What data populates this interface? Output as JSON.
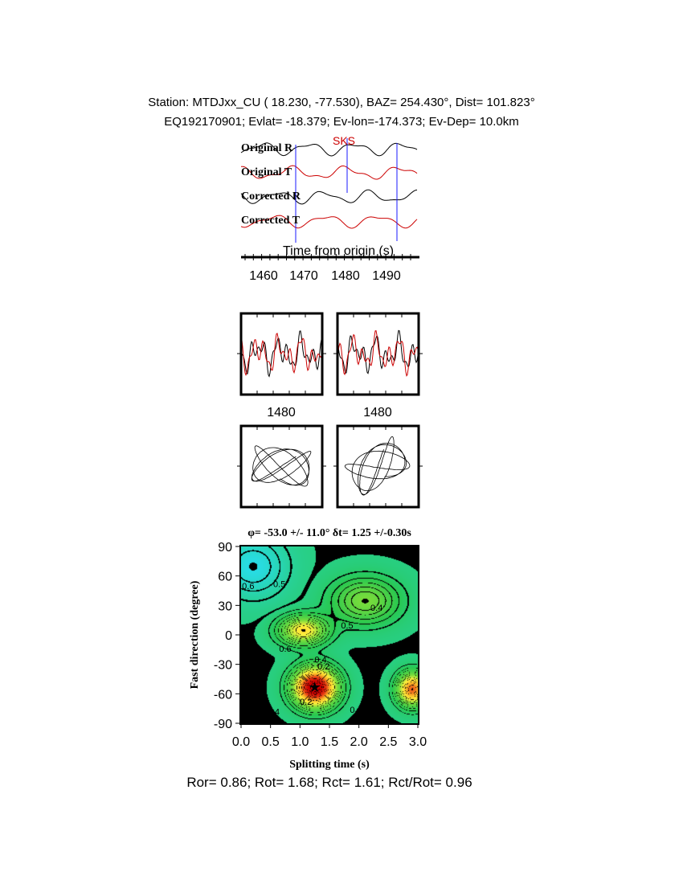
{
  "header": {
    "line1": "Station: MTDJxx_CU ( 18.230, -77.530), BAZ= 254.430°, Dist= 101.823°",
    "line2": "EQ192170901; Evlat= -18.379; Ev-lon=-174.373; Ev-Dep= 10.0km"
  },
  "traces": {
    "labels": [
      "Original R",
      "Original T",
      "Corrected R",
      "Corrected T"
    ],
    "phase_label": "SKS",
    "xlabel": "Time from origin (s)",
    "ticks": [
      "1460",
      "1470",
      "1480",
      "1490"
    ],
    "colors": {
      "radial": "#000000",
      "transverse": "#cc0000",
      "window": "#1a1aff"
    }
  },
  "window_panels": {
    "tick_left": "1480",
    "tick_right": "1480"
  },
  "chart_data": {
    "type": "heatmap",
    "title": "φ= -53.0 +/- 11.0° δt= 1.25 +/-0.30s",
    "xlabel": "Splitting time (s)",
    "ylabel": "Fast direction (degree)",
    "xlim": [
      0.0,
      3.0
    ],
    "ylim": [
      -90,
      90
    ],
    "x_ticks": [
      "0.0",
      "0.5",
      "1.0",
      "1.5",
      "2.0",
      "2.5",
      "3.0"
    ],
    "y_ticks": [
      "90",
      "60",
      "30",
      "0",
      "-30",
      "-60",
      "-90"
    ],
    "best_fit": {
      "dt": 1.25,
      "phi": -53.0
    },
    "contour_labels": [
      "0.6",
      "0.5",
      "0.4",
      "0.5",
      "0.6",
      "0.6",
      "0.4",
      "0.2",
      "0.2",
      "0.4",
      "0.4"
    ]
  },
  "footer": {
    "stats": "Ror= 0.86; Rot= 1.68; Rct= 1.61; Rct/Rot= 0.96"
  }
}
